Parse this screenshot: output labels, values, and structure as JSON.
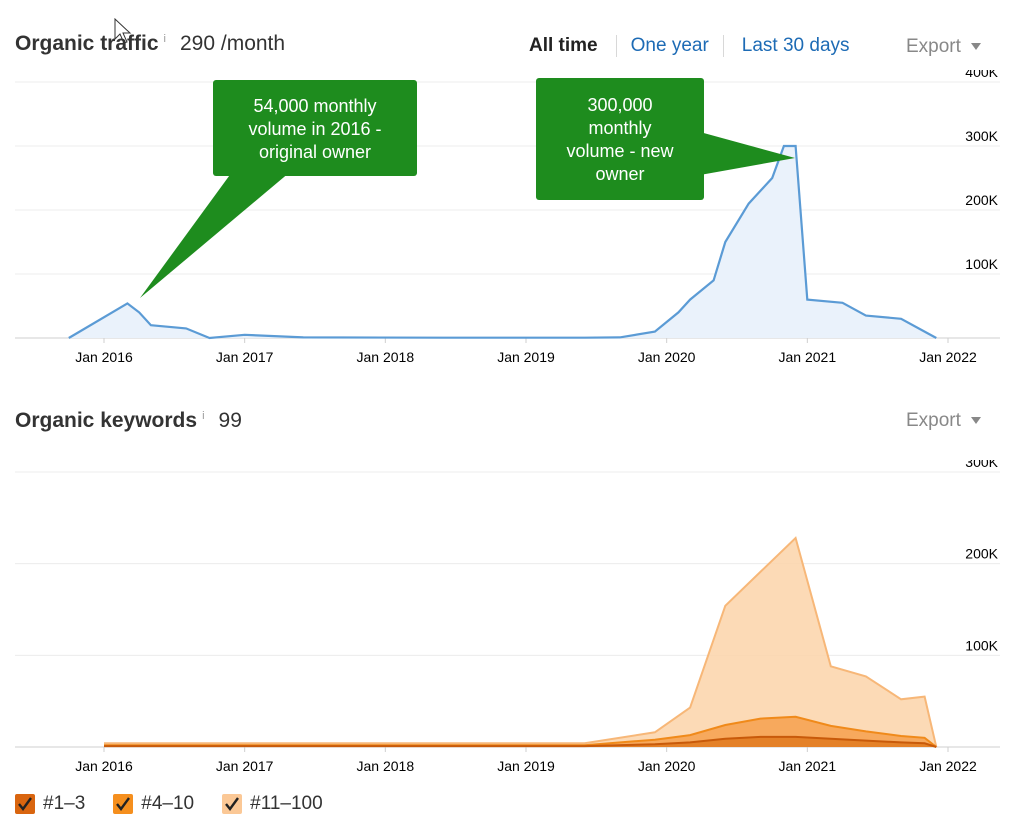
{
  "traffic": {
    "title": "Organic traffic",
    "info": "i",
    "value": "290 /month",
    "ranges": [
      "All time",
      "One year",
      "Last 30 days"
    ],
    "export_label": "Export",
    "callouts": [
      {
        "lines": [
          "54,000 monthly",
          "volume in 2016 -",
          "original owner"
        ]
      },
      {
        "lines": [
          "300,000",
          "monthly",
          "volume - new",
          "owner"
        ]
      }
    ]
  },
  "keywords": {
    "title": "Organic keywords",
    "info": "i",
    "value": "99",
    "export_label": "Export"
  },
  "legend": [
    {
      "label": "#1–3",
      "color": "#d9650f"
    },
    {
      "label": "#4–10",
      "color": "#f58f1e"
    },
    {
      "label": "#11–100",
      "color": "#fbc896"
    }
  ],
  "colors": {
    "traffic_line": "#5b9bd5",
    "traffic_fill": "#eaf2fb",
    "callout": "#1e8c1e",
    "link": "#1d6bb5"
  },
  "chart_data": [
    {
      "type": "area",
      "title": "Organic traffic",
      "x_ticks": [
        "Jan 2016",
        "Jan 2017",
        "Jan 2018",
        "Jan 2019",
        "Jan 2020",
        "Jan 2021",
        "Jan 2022"
      ],
      "y_ticks": [
        "100K",
        "200K",
        "300K",
        "400K"
      ],
      "ylim": [
        0,
        400000
      ],
      "series": [
        {
          "x": [
            "2015-10",
            "2016-03",
            "2016-04",
            "2016-05",
            "2016-08",
            "2016-10",
            "2017-01",
            "2017-06",
            "2018-06",
            "2019-06",
            "2019-09",
            "2019-12",
            "2020-02",
            "2020-03",
            "2020-05",
            "2020-06",
            "2020-08",
            "2020-10",
            "2020-11",
            "2020-12",
            "2021-01",
            "2021-04",
            "2021-06",
            "2021-09",
            "2021-11",
            "2021-12"
          ],
          "y": [
            0,
            54000,
            40000,
            20000,
            15000,
            0,
            5000,
            1000,
            500,
            500,
            1000,
            10000,
            40000,
            60000,
            90000,
            150000,
            210000,
            250000,
            300000,
            300000,
            60000,
            55000,
            35000,
            30000,
            10000,
            0
          ]
        }
      ]
    },
    {
      "type": "area",
      "title": "Organic keywords",
      "x_ticks": [
        "Jan 2016",
        "Jan 2017",
        "Jan 2018",
        "Jan 2019",
        "Jan 2020",
        "Jan 2021",
        "Jan 2022"
      ],
      "y_ticks": [
        "100K",
        "200K",
        "300K"
      ],
      "ylim": [
        0,
        300000
      ],
      "stacked": true,
      "series": [
        {
          "name": "#1–3",
          "x": [
            "2016-01",
            "2019-06",
            "2019-12",
            "2020-03",
            "2020-06",
            "2020-09",
            "2020-12",
            "2021-03",
            "2021-06",
            "2021-09",
            "2021-11",
            "2021-12"
          ],
          "y": [
            1000,
            1000,
            3000,
            5000,
            9000,
            11000,
            11000,
            9000,
            7000,
            5000,
            4000,
            0
          ]
        },
        {
          "name": "#4–10",
          "x": [
            "2016-01",
            "2019-06",
            "2019-12",
            "2020-03",
            "2020-06",
            "2020-09",
            "2020-12",
            "2021-03",
            "2021-06",
            "2021-09",
            "2021-11",
            "2021-12"
          ],
          "y": [
            1000,
            1000,
            5000,
            8000,
            15000,
            20000,
            22000,
            14000,
            10000,
            7000,
            6000,
            0
          ]
        },
        {
          "name": "#11–100",
          "x": [
            "2016-01",
            "2019-06",
            "2019-12",
            "2020-03",
            "2020-06",
            "2020-09",
            "2020-12",
            "2021-03",
            "2021-06",
            "2021-09",
            "2021-11",
            "2021-12"
          ],
          "y": [
            2000,
            2000,
            8000,
            30000,
            130000,
            160000,
            195000,
            65000,
            60000,
            40000,
            45000,
            0
          ]
        }
      ]
    }
  ]
}
